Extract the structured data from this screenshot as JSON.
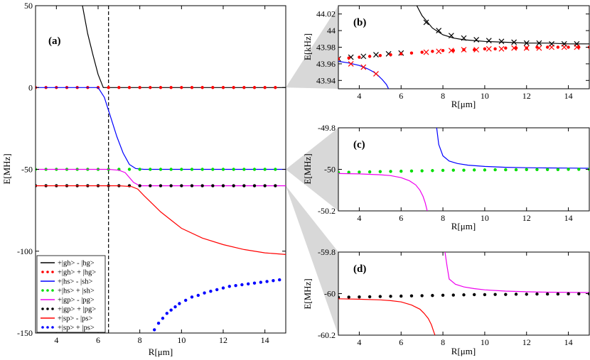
{
  "chart_data": [
    {
      "id": "a",
      "type": "line",
      "panel_label": "(a)",
      "xlabel": "R[μm]",
      "ylabel": "E[MHz]",
      "xlim": [
        3,
        15
      ],
      "ylim": [
        -150,
        50
      ],
      "x_ticks": [
        4,
        6,
        8,
        10,
        12,
        14
      ],
      "y_ticks": [
        50,
        0,
        -50,
        -100,
        -150
      ],
      "vline_x": 6.5,
      "series": [
        {
          "name": "+|gh> - |hg>",
          "style": "line",
          "color": "#000000",
          "x": [
            5.25,
            5.5,
            5.75,
            6.0,
            6.25,
            6.5,
            7.0,
            7.5,
            8,
            9,
            10,
            11,
            12,
            13,
            14,
            15
          ],
          "y": [
            50,
            33,
            20,
            8,
            0,
            0,
            0,
            0,
            0,
            0,
            0,
            0,
            0,
            0,
            0,
            0
          ]
        },
        {
          "name": "+|gh> + |hg>",
          "style": "dots",
          "color": "#ff0000",
          "x": [
            3.0,
            3.5,
            4.0,
            4.5,
            5.0,
            5.5,
            6.0,
            6.5,
            7.0,
            7.5,
            8.0,
            8.5,
            9.0,
            9.5,
            10.0,
            10.5,
            11.0,
            11.5,
            12.0,
            12.5,
            13.0,
            13.5,
            14.0,
            14.5
          ],
          "y": [
            0,
            0,
            0,
            0,
            0,
            0,
            0,
            0,
            0,
            0,
            0,
            0,
            0,
            0,
            0,
            0,
            0,
            0,
            0,
            0,
            0,
            0,
            0,
            0
          ]
        },
        {
          "name": "+|hs> - |sh>",
          "style": "line",
          "color": "#0000ff",
          "x": [
            3,
            4,
            5,
            6.0,
            6.3,
            6.6,
            6.9,
            7.2,
            7.5,
            7.8,
            8.2,
            9,
            10,
            12,
            15
          ],
          "y": [
            0,
            0,
            0,
            0,
            -6,
            -18,
            -30,
            -40,
            -47,
            -49.5,
            -50,
            -50,
            -50,
            -50,
            -50
          ]
        },
        {
          "name": "+|hs> + |sh>",
          "style": "dots",
          "color": "#00dd00",
          "x": [
            3.0,
            3.5,
            4.0,
            4.5,
            5.0,
            5.5,
            6.0,
            6.5,
            7.0,
            7.5,
            8.0,
            8.5,
            9.0,
            9.5,
            10.0,
            10.5,
            11.0,
            11.5,
            12.0,
            12.5,
            13.0,
            13.5,
            14.0,
            14.5
          ],
          "y": [
            -50,
            -50,
            -50,
            -50,
            -50,
            -50,
            -50,
            -50,
            -50,
            -50,
            -50,
            -50,
            -50,
            -50,
            -50,
            -50,
            -50,
            -50,
            -50,
            -50,
            -50,
            -50,
            -50,
            -50
          ]
        },
        {
          "name": "+|gp> - |pg>",
          "style": "line",
          "color": "#ee00ee",
          "x": [
            3,
            5,
            6.5,
            7.0,
            7.3,
            7.5,
            7.7,
            8.0,
            9,
            15
          ],
          "y": [
            -50,
            -50,
            -50,
            -50.5,
            -52,
            -55,
            -58,
            -60,
            -60,
            -60
          ]
        },
        {
          "name": "+|gp> + |pg>",
          "style": "dots",
          "color": "#000000",
          "x": [
            3.0,
            3.5,
            4.0,
            4.5,
            5.0,
            5.5,
            6.0,
            6.5,
            7.0,
            7.5,
            8.0,
            8.5,
            9.0,
            9.5,
            10.0,
            10.5,
            11.0,
            11.5,
            12.0,
            12.5,
            13.0,
            13.5,
            14.0,
            14.5
          ],
          "y": [
            -60,
            -60,
            -60,
            -60,
            -60,
            -60,
            -60,
            -60,
            -60,
            -60,
            -60,
            -60,
            -60,
            -60,
            -60,
            -60,
            -60,
            -60,
            -60,
            -60,
            -60,
            -60,
            -60,
            -60
          ]
        },
        {
          "name": "+|sp> - |ps>",
          "style": "line",
          "color": "#ff0000",
          "x": [
            3,
            5,
            6,
            7,
            7.6,
            7.9,
            8.2,
            8.6,
            9,
            9.5,
            10,
            11,
            12,
            13,
            14,
            15
          ],
          "y": [
            -60,
            -60,
            -60,
            -60,
            -60.5,
            -62,
            -66,
            -71,
            -76,
            -81,
            -86,
            -92,
            -96,
            -99,
            -101,
            -102
          ]
        },
        {
          "name": "+|sp> + |ps>",
          "style": "dots",
          "color": "#0000ff",
          "x": [
            8.7,
            8.9,
            9.1,
            9.3,
            9.5,
            9.7,
            9.9,
            10.2,
            10.5,
            10.8,
            11.1,
            11.4,
            11.7,
            12.0,
            12.3,
            12.6,
            12.9,
            13.2,
            13.5,
            13.8,
            14.1,
            14.4,
            14.7
          ],
          "y": [
            -148,
            -144,
            -141,
            -138,
            -136,
            -134,
            -132,
            -130,
            -128,
            -127,
            -125.5,
            -124.5,
            -123.5,
            -122.5,
            -121.5,
            -121,
            -120.5,
            -120,
            -119.5,
            -119,
            -118.5,
            -118,
            -117.5
          ]
        }
      ],
      "legend_position": "bottom-left"
    },
    {
      "id": "b",
      "type": "line",
      "panel_label": "(b)",
      "xlabel": "R[μm]",
      "ylabel": "E[kHz]",
      "xlim": [
        3,
        15
      ],
      "ylim": [
        43.93,
        44.03
      ],
      "x_ticks": [
        4,
        6,
        8,
        10,
        12,
        14
      ],
      "y_ticks": [
        "44.02",
        "44",
        "43.98",
        "43.96",
        "43.94"
      ],
      "series": [
        {
          "name": "black line",
          "style": "line",
          "color": "#000000",
          "x": [
            6.75,
            7.0,
            7.5,
            8.0,
            8.5,
            9.0,
            10.0,
            11.0,
            12.0,
            13.0,
            14.0,
            15.0
          ],
          "y": [
            44.03,
            44.018,
            44.003,
            43.995,
            43.991,
            43.989,
            43.987,
            43.986,
            43.985,
            43.985,
            43.984,
            43.984
          ]
        },
        {
          "name": "black crosses",
          "style": "x",
          "color": "#000000",
          "x": [
            3.0,
            3.6,
            4.2,
            4.8,
            5.4,
            6.0,
            7.2,
            7.8,
            8.4,
            9.0,
            9.6,
            10.2,
            10.8,
            11.4,
            12.0,
            12.6,
            13.2,
            13.8,
            14.4
          ],
          "y": [
            43.966,
            43.968,
            43.969,
            43.971,
            43.972,
            43.973,
            44.01,
            44.0,
            43.994,
            43.991,
            43.989,
            43.988,
            43.987,
            43.986,
            43.985,
            43.985,
            43.984,
            43.984,
            43.984
          ]
        },
        {
          "name": "red dots",
          "style": "dots",
          "color": "#ff0000",
          "x": [
            3.0,
            3.5,
            4.0,
            4.5,
            5.0,
            5.5,
            6.0,
            6.5,
            7.0,
            7.5,
            8.0,
            8.5,
            9.0,
            9.5,
            10.0,
            10.5,
            11.0,
            11.5,
            12.0,
            12.5,
            13.0,
            13.5,
            14.0,
            14.5,
            15.0
          ],
          "y": [
            43.966,
            43.967,
            43.968,
            43.969,
            43.97,
            43.971,
            43.972,
            43.973,
            43.974,
            43.975,
            43.976,
            43.976,
            43.977,
            43.977,
            43.978,
            43.978,
            43.979,
            43.979,
            43.979,
            43.98,
            43.98,
            43.98,
            43.98,
            43.98,
            43.98
          ]
        },
        {
          "name": "blue line",
          "style": "line",
          "color": "#0000ff",
          "x": [
            3.0,
            3.5,
            4.0,
            4.4,
            4.7,
            4.9,
            5.1,
            5.3,
            5.4
          ],
          "y": [
            43.963,
            43.961,
            43.958,
            43.954,
            43.95,
            43.946,
            43.941,
            43.935,
            43.93
          ]
        },
        {
          "name": "red crosses",
          "style": "x",
          "color": "#ff0000",
          "x": [
            3.6,
            4.2,
            4.8,
            7.2,
            7.8,
            8.4,
            9.0,
            9.6,
            10.2,
            10.8,
            11.4,
            12.0,
            12.6,
            13.2,
            13.8,
            14.4
          ],
          "y": [
            43.96,
            43.956,
            43.948,
            43.974,
            43.975,
            43.976,
            43.977,
            43.977,
            43.978,
            43.978,
            43.979,
            43.979,
            43.979,
            43.98,
            43.98,
            43.98
          ]
        }
      ]
    },
    {
      "id": "c",
      "type": "line",
      "panel_label": "(c)",
      "xlabel": "R[μm]",
      "ylabel": "E[MHz]",
      "xlim": [
        3,
        15
      ],
      "ylim": [
        -50.2,
        -49.8
      ],
      "x_ticks": [
        4,
        6,
        8,
        10,
        12,
        14
      ],
      "y_ticks": [
        "-49.8",
        "-50",
        "-50.2"
      ],
      "series": [
        {
          "name": "blue line",
          "style": "line",
          "color": "#0000ff",
          "x": [
            7.7,
            7.8,
            8.0,
            8.3,
            8.7,
            9.2,
            10.0,
            11.0,
            12.0,
            13.0,
            14.0,
            15.0
          ],
          "y": [
            -49.8,
            -49.88,
            -49.935,
            -49.96,
            -49.972,
            -49.98,
            -49.986,
            -49.99,
            -49.992,
            -49.993,
            -49.994,
            -49.995
          ]
        },
        {
          "name": "green dots",
          "style": "dots",
          "color": "#00dd00",
          "x": [
            3.0,
            3.5,
            4.0,
            4.5,
            5.0,
            5.5,
            6.0,
            6.5,
            7.0,
            7.5,
            8.0,
            8.5,
            9.0,
            9.5,
            10.0,
            10.5,
            11.0,
            11.5,
            12.0,
            12.5,
            13.0,
            13.5,
            14.0,
            14.5,
            15.0
          ],
          "y": [
            -50.015,
            -50.014,
            -50.013,
            -50.012,
            -50.011,
            -50.01,
            -50.009,
            -50.008,
            -50.007,
            -50.006,
            -50.005,
            -50.004,
            -50.004,
            -50.003,
            -50.003,
            -50.002,
            -50.002,
            -50.002,
            -50.001,
            -50.001,
            -50.001,
            -50.001,
            -50.0,
            -50.0,
            -50.0
          ]
        },
        {
          "name": "magenta line",
          "style": "line",
          "color": "#ee00ee",
          "x": [
            3.0,
            4.0,
            5.0,
            5.5,
            6.0,
            6.4,
            6.7,
            6.9,
            7.05,
            7.15,
            7.25
          ],
          "y": [
            -50.02,
            -50.022,
            -50.026,
            -50.03,
            -50.04,
            -50.055,
            -50.075,
            -50.1,
            -50.13,
            -50.16,
            -50.2
          ]
        }
      ]
    },
    {
      "id": "d",
      "type": "line",
      "panel_label": "(d)",
      "xlabel": "R[μm]",
      "ylabel": "E[MHz]",
      "xlim": [
        3,
        15
      ],
      "ylim": [
        -60.2,
        -59.8
      ],
      "x_ticks": [
        4,
        6,
        8,
        10,
        12,
        14
      ],
      "y_ticks": [
        "-59.8",
        "-60",
        "-60.2"
      ],
      "series": [
        {
          "name": "magenta line",
          "style": "line",
          "color": "#ee00ee",
          "x": [
            8.1,
            8.2,
            8.3,
            8.6,
            9.0,
            9.5,
            10.0,
            11.0,
            12.0,
            13.0,
            14.0,
            15.0
          ],
          "y": [
            -59.8,
            -59.87,
            -59.93,
            -59.955,
            -59.968,
            -59.976,
            -59.982,
            -59.988,
            -59.991,
            -59.993,
            -59.994,
            -59.995
          ]
        },
        {
          "name": "black dots",
          "style": "dots",
          "color": "#000000",
          "x": [
            3.0,
            3.5,
            4.0,
            4.5,
            5.0,
            5.5,
            6.0,
            6.5,
            7.0,
            7.5,
            8.0,
            8.5,
            9.0,
            9.5,
            10.0,
            10.5,
            11.0,
            11.5,
            12.0,
            12.5,
            13.0,
            13.5,
            14.0,
            14.5,
            15.0
          ],
          "y": [
            -60.018,
            -60.017,
            -60.016,
            -60.015,
            -60.014,
            -60.013,
            -60.012,
            -60.011,
            -60.01,
            -60.009,
            -60.008,
            -60.007,
            -60.006,
            -60.005,
            -60.005,
            -60.004,
            -60.004,
            -60.003,
            -60.003,
            -60.002,
            -60.002,
            -60.002,
            -60.001,
            -60.001,
            -60.001
          ]
        },
        {
          "name": "red line",
          "style": "line",
          "color": "#ff0000",
          "x": [
            3.0,
            4.0,
            5.0,
            5.5,
            6.0,
            6.5,
            6.9,
            7.1,
            7.3,
            7.45,
            7.55,
            7.62
          ],
          "y": [
            -60.025,
            -60.027,
            -60.03,
            -60.034,
            -60.04,
            -60.055,
            -60.075,
            -60.095,
            -60.12,
            -60.15,
            -60.18,
            -60.2
          ]
        }
      ]
    }
  ],
  "legend": [
    {
      "label": "+|gh> - |hg>",
      "style": "line",
      "color": "#000000"
    },
    {
      "label": "+|gh> + |hg>",
      "style": "dots",
      "color": "#ff0000"
    },
    {
      "label": "+|hs> - |sh>",
      "style": "line",
      "color": "#0000ff"
    },
    {
      "label": "+|hs> + |sh>",
      "style": "dots",
      "color": "#00dd00"
    },
    {
      "label": "+|gp> - |pg>",
      "style": "line",
      "color": "#ee00ee"
    },
    {
      "label": "+|gp> + |pg>",
      "style": "dots",
      "color": "#000000"
    },
    {
      "label": "+|sp> - |ps>",
      "style": "line",
      "color": "#ff0000"
    },
    {
      "label": "+|sp> + |ps>",
      "style": "dots",
      "color": "#0000ff"
    }
  ],
  "zoom_color": "#d8d8d8"
}
